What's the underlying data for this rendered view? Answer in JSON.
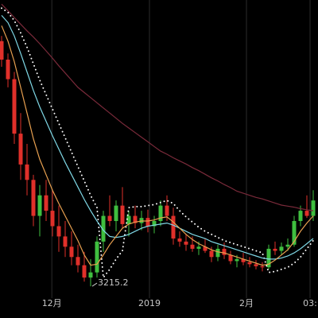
{
  "chart_data": {
    "type": "candlestick",
    "up_color": "#3fbf3f",
    "down_color": "#e0302a",
    "grid_color": "#2b2b2b",
    "ylim": [
      3100,
      6000
    ],
    "xlim": [
      -0.25,
      49.75
    ],
    "xticks": [
      {
        "value": 7.9,
        "label": "12月"
      },
      {
        "value": 23.25,
        "label": "2019"
      },
      {
        "value": 38.5,
        "label": "2月"
      },
      {
        "value": 48.5,
        "label": "03:"
      }
    ],
    "open": [
      5600,
      5420,
      5230,
      4700,
      4400,
      4250,
      3900,
      4100,
      3950,
      3800,
      3700,
      3600,
      3500,
      3420,
      3300,
      3350,
      3650,
      3900,
      3850,
      4000,
      3820,
      3900,
      3830,
      3880,
      3800,
      3850,
      4000,
      3900,
      3680,
      3650,
      3620,
      3580,
      3600,
      3560,
      3500,
      3580,
      3520,
      3460,
      3480,
      3450,
      3430,
      3410,
      3400,
      3580,
      3560,
      3600,
      3620,
      3850,
      3950,
      3900
    ],
    "high": [
      5650,
      5480,
      5300,
      4900,
      4600,
      4300,
      4200,
      4250,
      4150,
      4000,
      3850,
      3750,
      3620,
      3550,
      3480,
      3700,
      3950,
      4100,
      4050,
      4180,
      3950,
      4000,
      3950,
      3960,
      3900,
      4050,
      4100,
      3980,
      3750,
      3720,
      3700,
      3650,
      3680,
      3600,
      3620,
      3640,
      3560,
      3520,
      3540,
      3500,
      3470,
      3450,
      3620,
      3650,
      3640,
      3680,
      3900,
      4000,
      4100,
      4150
    ],
    "low": [
      5350,
      5150,
      4600,
      4250,
      4100,
      3800,
      3700,
      3850,
      3700,
      3550,
      3500,
      3420,
      3350,
      3260,
      3215.2,
      3300,
      3550,
      3800,
      3750,
      3780,
      3700,
      3780,
      3760,
      3740,
      3730,
      3800,
      3850,
      3620,
      3600,
      3560,
      3550,
      3520,
      3540,
      3450,
      3460,
      3480,
      3430,
      3400,
      3420,
      3400,
      3380,
      3360,
      3380,
      3520,
      3520,
      3560,
      3600,
      3800,
      3880,
      3850
    ],
    "close": [
      5420,
      5230,
      4700,
      4400,
      4250,
      3900,
      4100,
      3950,
      3800,
      3700,
      3600,
      3500,
      3420,
      3300,
      3350,
      3650,
      3900,
      3850,
      4000,
      3820,
      3900,
      3830,
      3880,
      3800,
      3850,
      4000,
      3900,
      3680,
      3650,
      3620,
      3580,
      3600,
      3560,
      3500,
      3580,
      3520,
      3460,
      3480,
      3450,
      3430,
      3410,
      3400,
      3580,
      3560,
      3600,
      3620,
      3850,
      3950,
      3900,
      4050
    ],
    "series": [
      {
        "color": "#7a2a3a",
        "dash": false,
        "values": [
          5960,
          5895,
          5830,
          5765,
          5700,
          5640,
          5575,
          5505,
          5435,
          5360,
          5290,
          5220,
          5150,
          5100,
          5050,
          5000,
          4950,
          4900,
          4850,
          4800,
          4755,
          4710,
          4665,
          4620,
          4575,
          4530,
          4500,
          4465,
          4435,
          4405,
          4370,
          4340,
          4305,
          4270,
          4240,
          4205,
          4175,
          4140,
          4120,
          4100,
          4080,
          4065,
          4045,
          4025,
          4005,
          3995,
          3985,
          3970,
          3960,
          3950
        ]
      },
      {
        "color": "#ffffff",
        "dash": true,
        "values": [
          5920,
          5880,
          5800,
          5680,
          5540,
          5380,
          5220,
          5080,
          4940,
          4800,
          4660,
          4520,
          4380,
          4240,
          4100,
          3980,
          3300,
          3380,
          3480,
          3560,
          3980,
          3990,
          3990,
          4000,
          4010,
          4030,
          4050,
          4020,
          3950,
          3890,
          3840,
          3790,
          3750,
          3720,
          3690,
          3660,
          3640,
          3620,
          3600,
          3580,
          3560,
          3540,
          3350,
          3360,
          3380,
          3400,
          3440,
          3500,
          3580,
          3660
        ]
      },
      {
        "color": "#7fd8e6",
        "dash": false,
        "values": [
          5850,
          5780,
          5650,
          5480,
          5300,
          5120,
          4960,
          4820,
          4680,
          4550,
          4420,
          4300,
          4180,
          4060,
          3950,
          3850,
          3760,
          3700,
          3690,
          3700,
          3720,
          3750,
          3780,
          3800,
          3810,
          3820,
          3830,
          3810,
          3780,
          3750,
          3720,
          3700,
          3680,
          3650,
          3630,
          3610,
          3590,
          3570,
          3550,
          3530,
          3510,
          3490,
          3480,
          3480,
          3490,
          3510,
          3540,
          3580,
          3630,
          3680
        ]
      },
      {
        "color": "#e8a050",
        "dash": false,
        "values": [
          5750,
          5600,
          5400,
          5150,
          4900,
          4650,
          4450,
          4300,
          4150,
          4020,
          3900,
          3780,
          3660,
          3520,
          3420,
          3430,
          3520,
          3620,
          3700,
          3780,
          3820,
          3840,
          3850,
          3850,
          3860,
          3880,
          3890,
          3840,
          3780,
          3720,
          3670,
          3630,
          3600,
          3570,
          3550,
          3540,
          3520,
          3500,
          3480,
          3460,
          3440,
          3420,
          3430,
          3470,
          3520,
          3570,
          3650,
          3750,
          3830,
          3900
        ]
      }
    ],
    "annotations": [
      {
        "text": "3215.2",
        "x": 14,
        "y": 3215.2
      }
    ]
  }
}
